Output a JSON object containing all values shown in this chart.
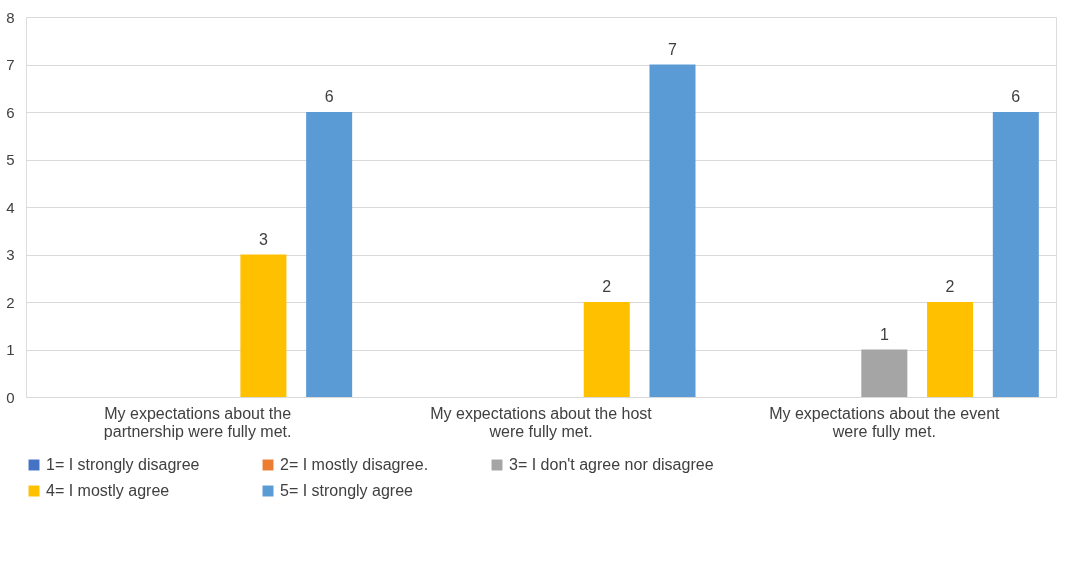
{
  "chart_data": {
    "type": "bar",
    "categories": [
      "My expectations about the partnership were fully met.",
      "My expectations about the host were fully met.",
      "My expectations about the event were fully met."
    ],
    "series": [
      {
        "name": "1= I strongly disagree",
        "color": "#4472c4",
        "values": [
          null,
          null,
          null
        ]
      },
      {
        "name": "2= I mostly disagree.",
        "color": "#ed7d31",
        "values": [
          null,
          null,
          null
        ]
      },
      {
        "name": "3= I don't agree nor disagree",
        "color": "#a5a5a5",
        "values": [
          null,
          null,
          1
        ]
      },
      {
        "name": "4= I mostly agree",
        "color": "#ffc000",
        "values": [
          3,
          2,
          2
        ]
      },
      {
        "name": "5= I strongly agree",
        "color": "#5b9bd5",
        "values": [
          6,
          7,
          6
        ]
      }
    ],
    "ylim": [
      0,
      8
    ],
    "yticks": [
      0,
      1,
      2,
      3,
      4,
      5,
      6,
      7,
      8
    ],
    "grid": "y",
    "legend": "bottom",
    "data_labels": true
  }
}
